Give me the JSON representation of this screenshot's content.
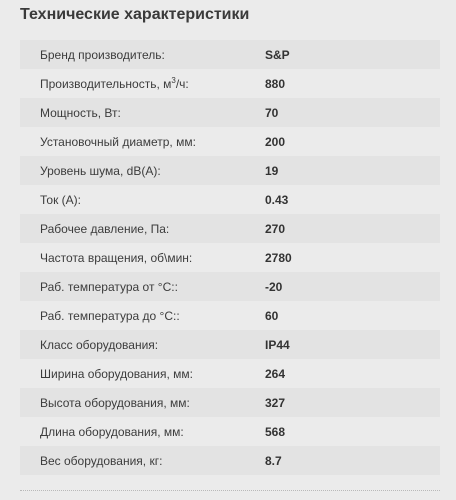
{
  "heading": "Технические характеристики",
  "specs": [
    {
      "label": "Бренд производитель:",
      "value": "S&P"
    },
    {
      "label_before": "Производительность, м",
      "label_sup": "3",
      "label_after": "/ч:",
      "value": "880"
    },
    {
      "label": "Мощность, Вт:",
      "value": "70"
    },
    {
      "label": "Установочный диаметр, мм:",
      "value": "200"
    },
    {
      "label": "Уровень шума, dB(A):",
      "value": "19"
    },
    {
      "label": "Ток (А):",
      "value": "0.43"
    },
    {
      "label": "Рабочее давление, Па:",
      "value": "270"
    },
    {
      "label": "Частота вращения, об\\мин:",
      "value": "2780"
    },
    {
      "label": "Раб. температура от °C::",
      "value": "-20"
    },
    {
      "label": "Раб. температура до °C::",
      "value": "60"
    },
    {
      "label": "Класс оборудования:",
      "value": "IP44"
    },
    {
      "label": "Ширина оборудования, мм:",
      "value": "264"
    },
    {
      "label": "Высота оборудования, мм:",
      "value": "327"
    },
    {
      "label": "Длина оборудования, мм:",
      "value": "568"
    },
    {
      "label": "Вес оборудования, кг:",
      "value": "8.7"
    }
  ]
}
